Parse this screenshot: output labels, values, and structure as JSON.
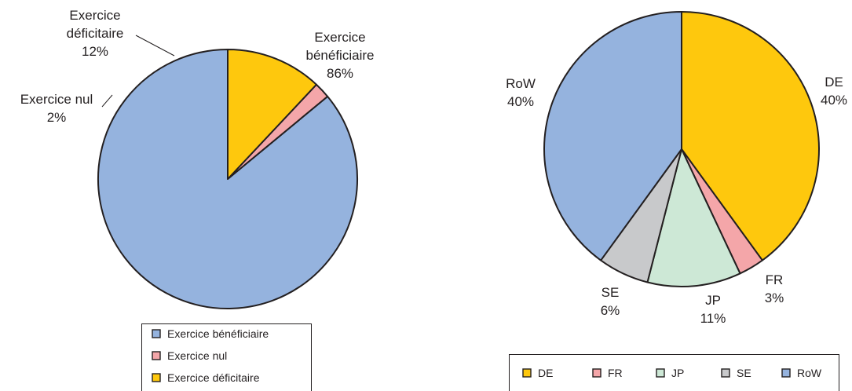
{
  "chart_data": [
    {
      "type": "pie",
      "title": "",
      "legend_position": "bottom",
      "slices": [
        {
          "label_lines": [
            "Exercice",
            "bénéficiaire"
          ],
          "legend": "Exercice bénéficiaire",
          "value": 86,
          "value_label": "86%",
          "color": "#95b3de"
        },
        {
          "label_lines": [
            "Exercice nul"
          ],
          "legend": "Exercice nul",
          "value": 2,
          "value_label": "2%",
          "color": "#f4a6a9"
        },
        {
          "label_lines": [
            "Exercice",
            "déficitaire"
          ],
          "legend": "Exercice déficitaire",
          "value": 12,
          "value_label": "12%",
          "color": "#fec80d"
        }
      ]
    },
    {
      "type": "pie",
      "title": "",
      "legend_position": "bottom",
      "slices": [
        {
          "label_lines": [
            "DE"
          ],
          "legend": "DE",
          "value": 40,
          "value_label": "40%",
          "color": "#fec80d"
        },
        {
          "label_lines": [
            "FR"
          ],
          "legend": "FR",
          "value": 3,
          "value_label": "3%",
          "color": "#f4a6a9"
        },
        {
          "label_lines": [
            "JP"
          ],
          "legend": "JP",
          "value": 11,
          "value_label": "11%",
          "color": "#cde8d6"
        },
        {
          "label_lines": [
            "SE"
          ],
          "legend": "SE",
          "value": 6,
          "value_label": "6%",
          "color": "#c8c9cb"
        },
        {
          "label_lines": [
            "RoW"
          ],
          "legend": "RoW",
          "value": 40,
          "value_label": "40%",
          "color": "#95b3de"
        }
      ]
    }
  ]
}
